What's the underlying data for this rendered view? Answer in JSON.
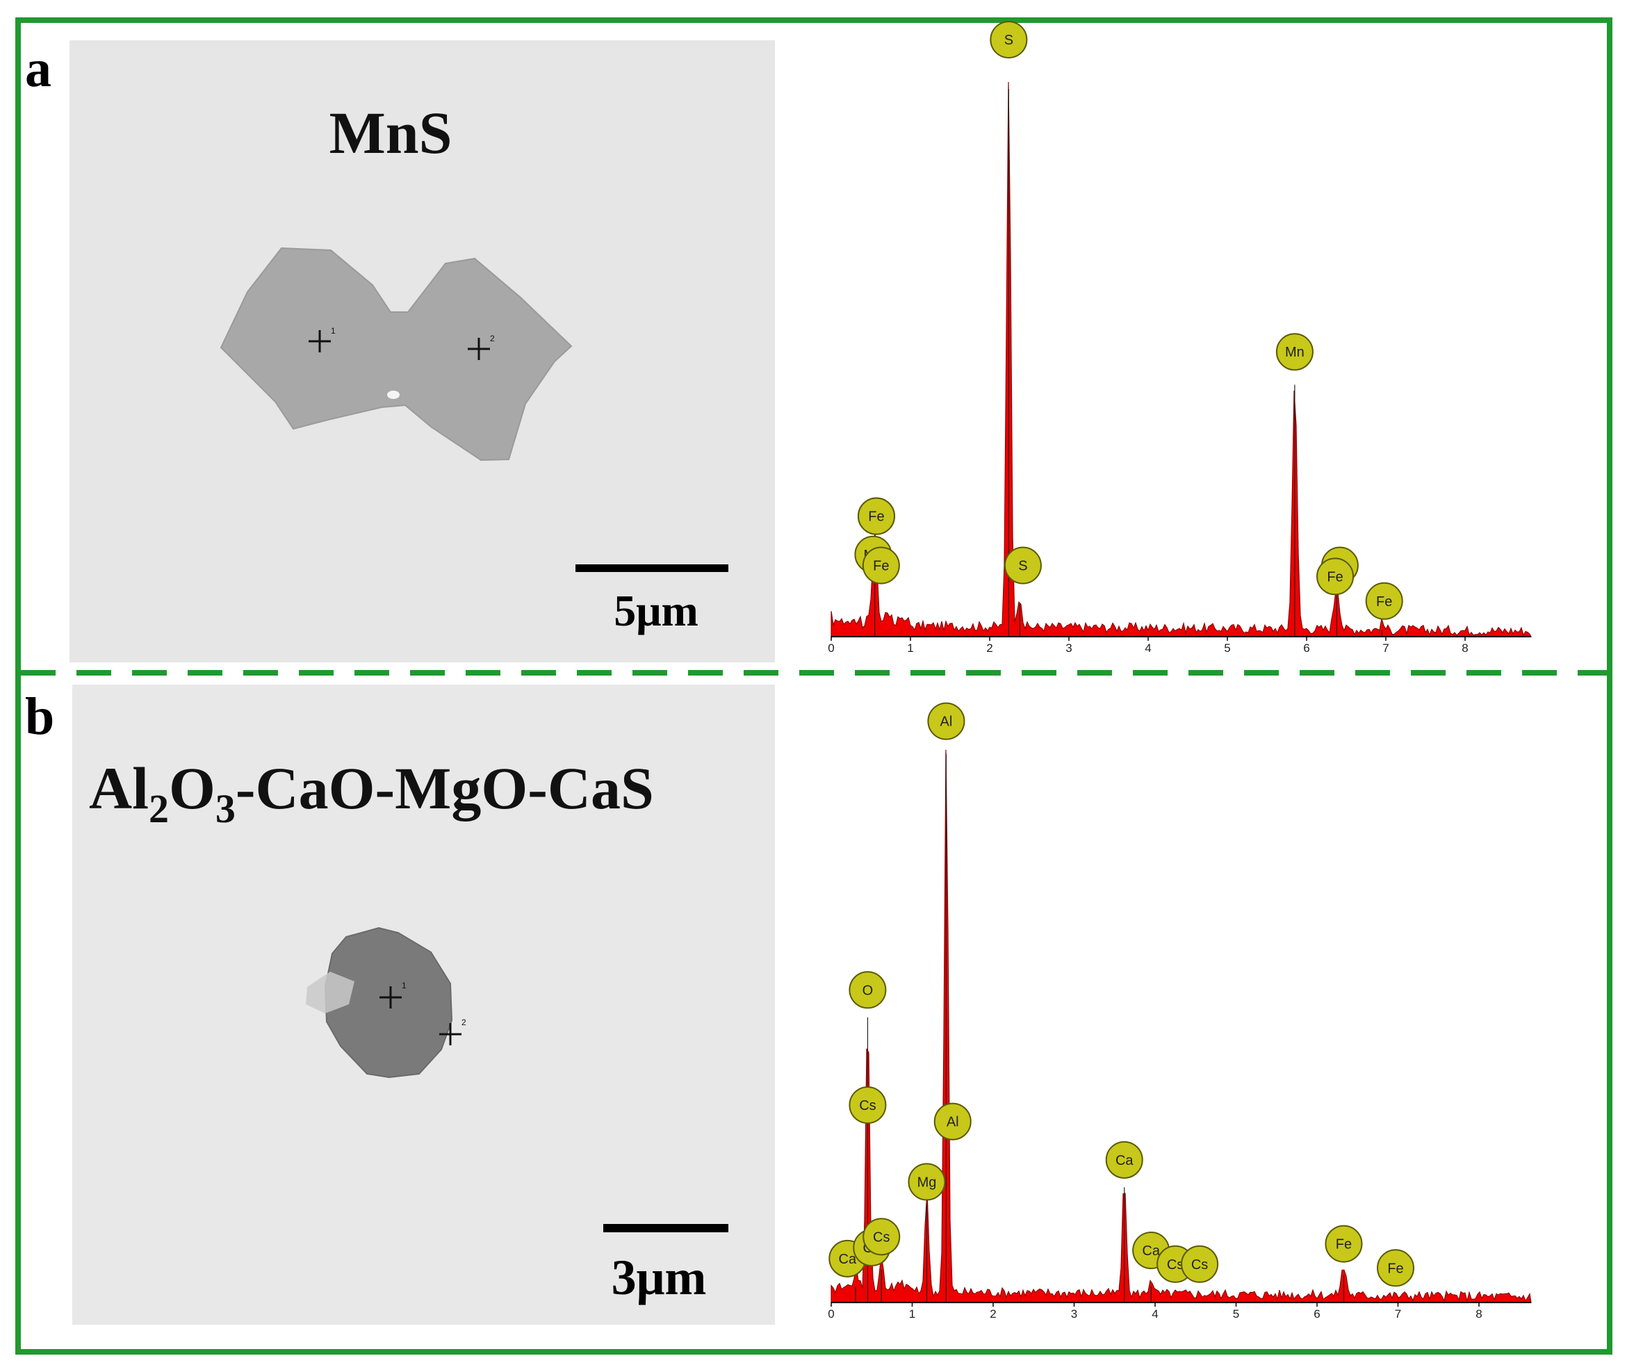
{
  "panels": [
    {
      "letter": "a",
      "phase": "MnS",
      "scale_bar": "5μm",
      "points": [
        "1",
        "2"
      ],
      "edx": {
        "axis_ticks": [
          "0",
          "1",
          "2",
          "3",
          "4",
          "5",
          "6",
          "7",
          "8"
        ],
        "peaks": [
          {
            "keV": 0.55,
            "height": 0.16,
            "width": 0.06
          },
          {
            "keV": 2.24,
            "height": 1.0,
            "width": 0.055
          },
          {
            "keV": 2.38,
            "height": 0.06,
            "width": 0.05
          },
          {
            "keV": 5.85,
            "height": 0.46,
            "width": 0.06
          },
          {
            "keV": 6.38,
            "height": 0.08,
            "width": 0.07
          },
          {
            "keV": 6.95,
            "height": 0.012,
            "width": 0.06
          }
        ],
        "labels": [
          {
            "text": "Mn",
            "keV": 0.57,
            "level": 0.22
          },
          {
            "text": "Fe",
            "keV": 0.57,
            "level": 0.22
          },
          {
            "text": "Mn",
            "keV": 0.53,
            "level": 0.15
          },
          {
            "text": "Fe",
            "keV": 0.63,
            "level": 0.13
          },
          {
            "text": "S",
            "keV": 2.24,
            "level": 1.09
          },
          {
            "text": "S",
            "keV": 2.42,
            "level": 0.13
          },
          {
            "text": "Mn",
            "keV": 5.85,
            "level": 0.52
          },
          {
            "text": "Mn",
            "keV": 6.42,
            "level": 0.13
          },
          {
            "text": "Fe",
            "keV": 6.36,
            "level": 0.11
          },
          {
            "text": "Fe",
            "keV": 6.98,
            "level": 0.065
          }
        ]
      }
    },
    {
      "letter": "b",
      "phase": "Al2O3-CaO-MgO-CaS",
      "phase_parts": [
        "Al",
        "2",
        "O",
        "3",
        "-CaO-MgO-CaS"
      ],
      "scale_bar": "3μm",
      "points": [
        "1",
        "2"
      ],
      "edx": {
        "axis_ticks": [
          "0",
          "1",
          "2",
          "3",
          "4",
          "5",
          "6",
          "7",
          "8"
        ],
        "peaks": [
          {
            "keV": 0.3,
            "height": 0.03,
            "width": 0.05
          },
          {
            "keV": 0.45,
            "height": 0.52,
            "width": 0.045
          },
          {
            "keV": 0.62,
            "height": 0.06,
            "width": 0.04
          },
          {
            "keV": 1.18,
            "height": 0.18,
            "width": 0.05
          },
          {
            "keV": 1.42,
            "height": 1.0,
            "width": 0.05
          },
          {
            "keV": 3.62,
            "height": 0.21,
            "width": 0.05
          },
          {
            "keV": 3.95,
            "height": 0.03,
            "width": 0.05
          },
          {
            "keV": 6.33,
            "height": 0.05,
            "width": 0.07
          }
        ],
        "labels": [
          {
            "text": "Al",
            "keV": 1.42,
            "level": 1.06
          },
          {
            "text": "O",
            "keV": 0.45,
            "level": 0.57
          },
          {
            "text": "Cs",
            "keV": 0.45,
            "level": 0.36
          },
          {
            "text": "Al",
            "keV": 1.5,
            "level": 0.33
          },
          {
            "text": "Mg",
            "keV": 1.18,
            "level": 0.22
          },
          {
            "text": "Ca",
            "keV": 3.62,
            "level": 0.26
          },
          {
            "text": "Ca",
            "keV": 0.2,
            "level": 0.08
          },
          {
            "text": "Ca",
            "keV": 0.5,
            "level": 0.1
          },
          {
            "text": "Cs",
            "keV": 0.62,
            "level": 0.12
          },
          {
            "text": "Ca",
            "keV": 3.95,
            "level": 0.095
          },
          {
            "text": "Cs",
            "keV": 4.25,
            "level": 0.07
          },
          {
            "text": "Cs",
            "keV": 4.55,
            "level": 0.07
          },
          {
            "text": "Fe",
            "keV": 6.33,
            "level": 0.107
          },
          {
            "text": "Fe",
            "keV": 6.97,
            "level": 0.063
          }
        ]
      }
    }
  ],
  "colors": {
    "frame": "#1f9a2e",
    "peak_fill": "#ee0000",
    "label_fill": "#c8c81a",
    "label_stroke": "#5a5a00",
    "sem_background": "#e6e6e6",
    "particle_a": "#a8a8a8",
    "particle_b": "#7a7a7a"
  }
}
